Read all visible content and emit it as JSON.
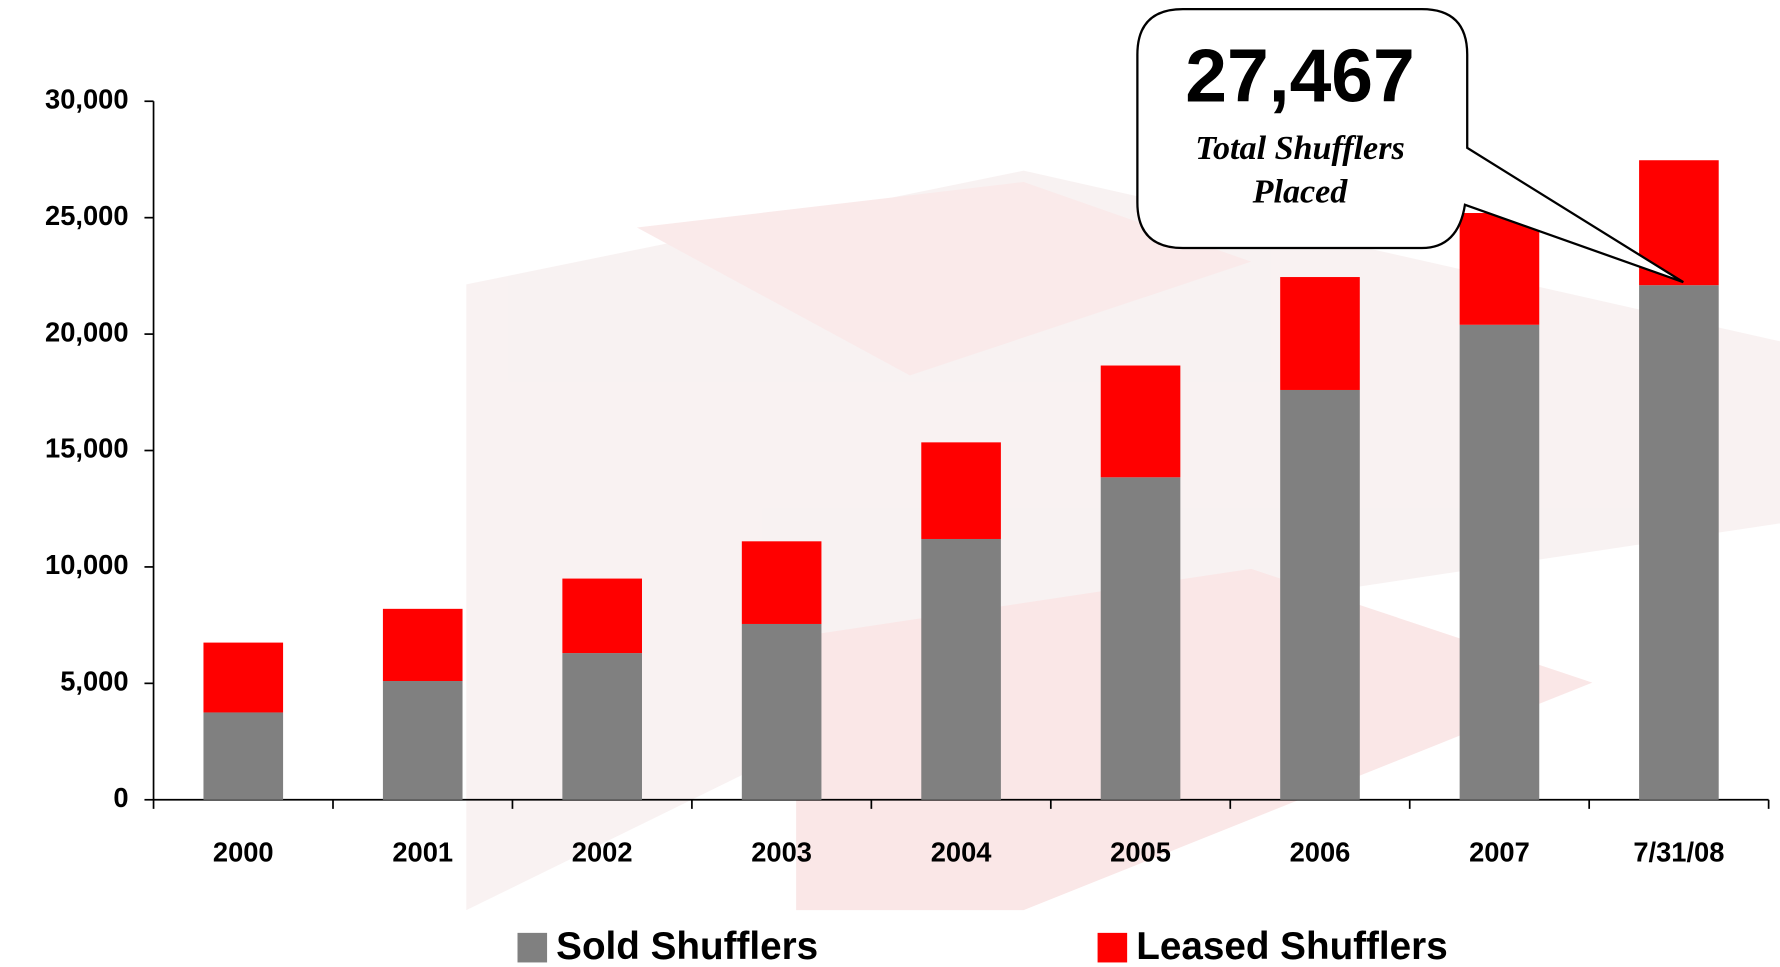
{
  "chart_data": {
    "type": "stacked_bar",
    "categories": [
      "2000",
      "2001",
      "2002",
      "2003",
      "2004",
      "2005",
      "2006",
      "2007",
      "7/31/08"
    ],
    "series": [
      {
        "name": "Sold Shufflers",
        "color": "#808080",
        "values": [
          3750,
          5100,
          6300,
          7550,
          11200,
          13850,
          17600,
          20400,
          22100
        ]
      },
      {
        "name": "Leased Shufflers",
        "color": "#ff0000",
        "values": [
          3000,
          3100,
          3200,
          3550,
          4150,
          4800,
          4850,
          4800,
          5367
        ]
      }
    ],
    "ylim": [
      0,
      30000
    ],
    "yticks": [
      0,
      {
        "value": 5000,
        "label": "5,000"
      },
      {
        "value": 10000,
        "label": "10,000"
      },
      {
        "value": 15000,
        "label": "15,000"
      },
      {
        "value": 20000,
        "label": "20,000"
      },
      {
        "value": 25000,
        "label": "25,000"
      },
      {
        "value": 30000,
        "label": "30,000"
      }
    ],
    "annotation": {
      "headline": "27,467",
      "lines": [
        "Total Shufflers",
        "Placed"
      ]
    },
    "legend": "bottom"
  }
}
